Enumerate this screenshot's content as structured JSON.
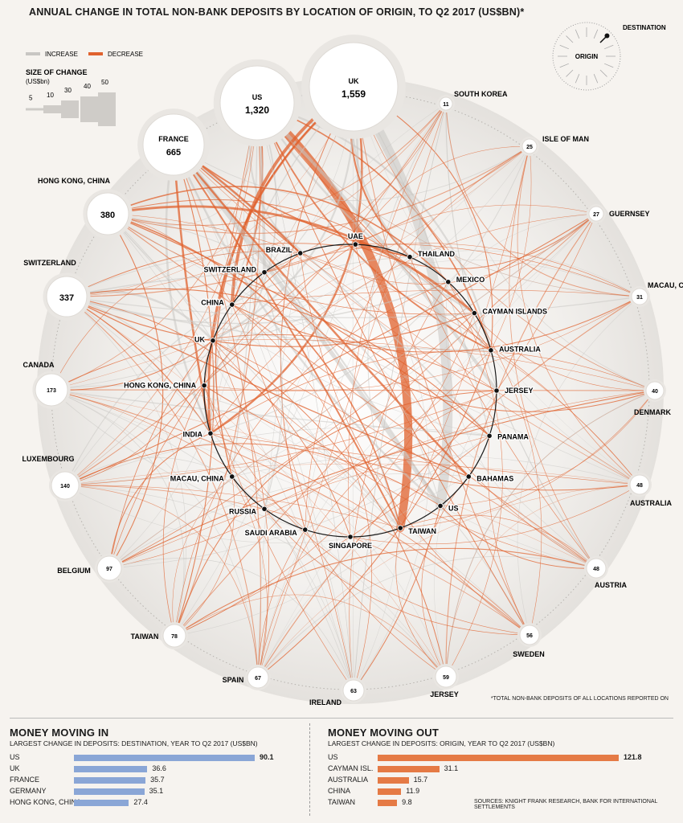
{
  "title": "ANNUAL CHANGE IN TOTAL NON-BANK DEPOSITS BY LOCATION OF ORIGIN, TO Q2 2017 (US$BN)*",
  "legend": {
    "increase_label": "INCREASE",
    "decrease_label": "DECREASE",
    "increase_color": "#c8c6c3",
    "decrease_color": "#e0622e",
    "size_title": "SIZE OF CHANGE",
    "size_unit": "(US$bn)",
    "size_steps": [
      "5",
      "10",
      "30",
      "40",
      "50"
    ]
  },
  "compass": {
    "origin_label": "ORIGIN",
    "destination_label": "DESTINATION"
  },
  "chart_data": {
    "type": "chord",
    "origins": [
      {
        "name": "US",
        "value": "1,320"
      },
      {
        "name": "UK",
        "value": "1,559"
      },
      {
        "name": "FRANCE",
        "value": "665"
      },
      {
        "name": "HONG KONG, CHINA",
        "value": "380"
      },
      {
        "name": "SWITZERLAND",
        "value": "337"
      },
      {
        "name": "CANADA",
        "value": "173"
      },
      {
        "name": "LUXEMBOURG",
        "value": "140"
      },
      {
        "name": "BELGIUM",
        "value": "97"
      },
      {
        "name": "TAIWAN",
        "value": "78"
      },
      {
        "name": "SPAIN",
        "value": "67"
      },
      {
        "name": "IRELAND",
        "value": "63"
      },
      {
        "name": "JERSEY",
        "value": "59"
      },
      {
        "name": "SWEDEN",
        "value": "56"
      },
      {
        "name": "AUSTRIA",
        "value": "48"
      },
      {
        "name": "AUSTRALIA",
        "value": "48"
      },
      {
        "name": "DENMARK",
        "value": "40"
      },
      {
        "name": "MACAU, CHINA",
        "value": "31"
      },
      {
        "name": "GUERNSEY",
        "value": "27"
      },
      {
        "name": "ISLE OF MAN",
        "value": "25"
      },
      {
        "name": "SOUTH KOREA",
        "value": "11"
      }
    ],
    "destinations": [
      "UAE",
      "THAILAND",
      "MEXICO",
      "CAYMAN ISLANDS",
      "AUSTRALIA",
      "JERSEY",
      "PANAMA",
      "BAHAMAS",
      "US",
      "TAIWAN",
      "SINGAPORE",
      "SAUDI ARABIA",
      "RUSSIA",
      "MACAU, CHINA",
      "INDIA",
      "HONG KONG, CHINA",
      "UK",
      "CHINA",
      "SWITZERLAND",
      "BRAZIL"
    ]
  },
  "footnote": "*TOTAL NON-BANK DEPOSITS OF ALL LOCATIONS REPORTED ON",
  "money_in": {
    "title": "MONEY MOVING IN",
    "subtitle": "LARGEST CHANGE IN DEPOSITS: DESTINATION, YEAR TO Q2 2017 (US$BN)",
    "color": "#8aa6d6",
    "rows": [
      {
        "name": "US",
        "value": 90.1,
        "label": "90.1"
      },
      {
        "name": "UK",
        "value": 36.6,
        "label": "36.6"
      },
      {
        "name": "FRANCE",
        "value": 35.7,
        "label": "35.7"
      },
      {
        "name": "GERMANY",
        "value": 35.1,
        "label": "35.1"
      },
      {
        "name": "HONG KONG, CHINA",
        "value": 27.4,
        "label": "27.4"
      }
    ]
  },
  "money_out": {
    "title": "MONEY MOVING OUT",
    "subtitle": "LARGEST CHANGE IN DEPOSITS: ORIGIN, YEAR TO Q2 2017 (US$BN)",
    "color": "#e57a45",
    "rows": [
      {
        "name": "US",
        "value": 121.8,
        "label": "121.8"
      },
      {
        "name": "CAYMAN ISL.",
        "value": 31.1,
        "label": "31.1"
      },
      {
        "name": "AUSTRALIA",
        "value": 15.7,
        "label": "15.7"
      },
      {
        "name": "CHINA",
        "value": 11.9,
        "label": "11.9"
      },
      {
        "name": "TAIWAN",
        "value": 9.8,
        "label": "9.8"
      }
    ]
  },
  "sources": "SOURCES: KNIGHT FRANK RESEARCH, BANK FOR INTERNATIONAL SETTLEMENTS"
}
